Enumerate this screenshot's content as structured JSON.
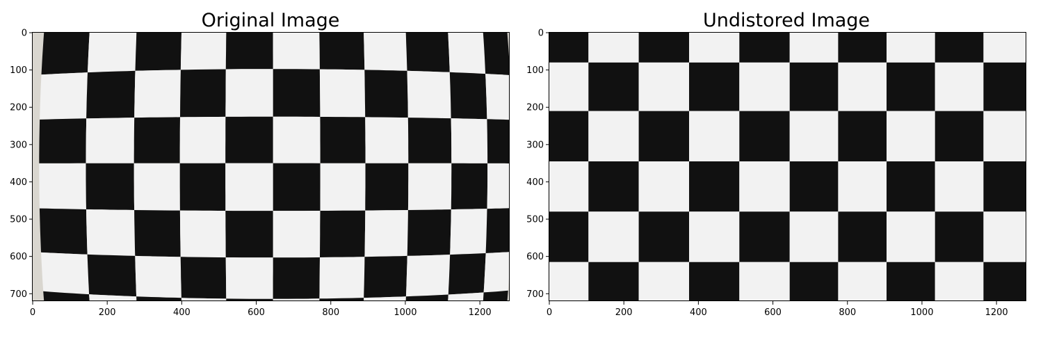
{
  "panels": [
    {
      "title": "Original Image",
      "image_width": 1280,
      "image_height": 720,
      "x_ticks": [
        0,
        200,
        400,
        600,
        800,
        1000,
        1200
      ],
      "y_ticks": [
        0,
        100,
        200,
        300,
        400,
        500,
        600,
        700
      ],
      "distortion": "barrel",
      "background_color": "#d9d6cf"
    },
    {
      "title": "Undistored Image",
      "image_width": 1280,
      "image_height": 720,
      "x_ticks": [
        0,
        200,
        400,
        600,
        800,
        1000,
        1200
      ],
      "y_ticks": [
        0,
        100,
        200,
        300,
        400,
        500,
        600,
        700
      ],
      "distortion": "none",
      "background_color": "#efefef"
    }
  ],
  "colors": {
    "dark_square": "#111111",
    "light_square": "#f2f2f2"
  }
}
